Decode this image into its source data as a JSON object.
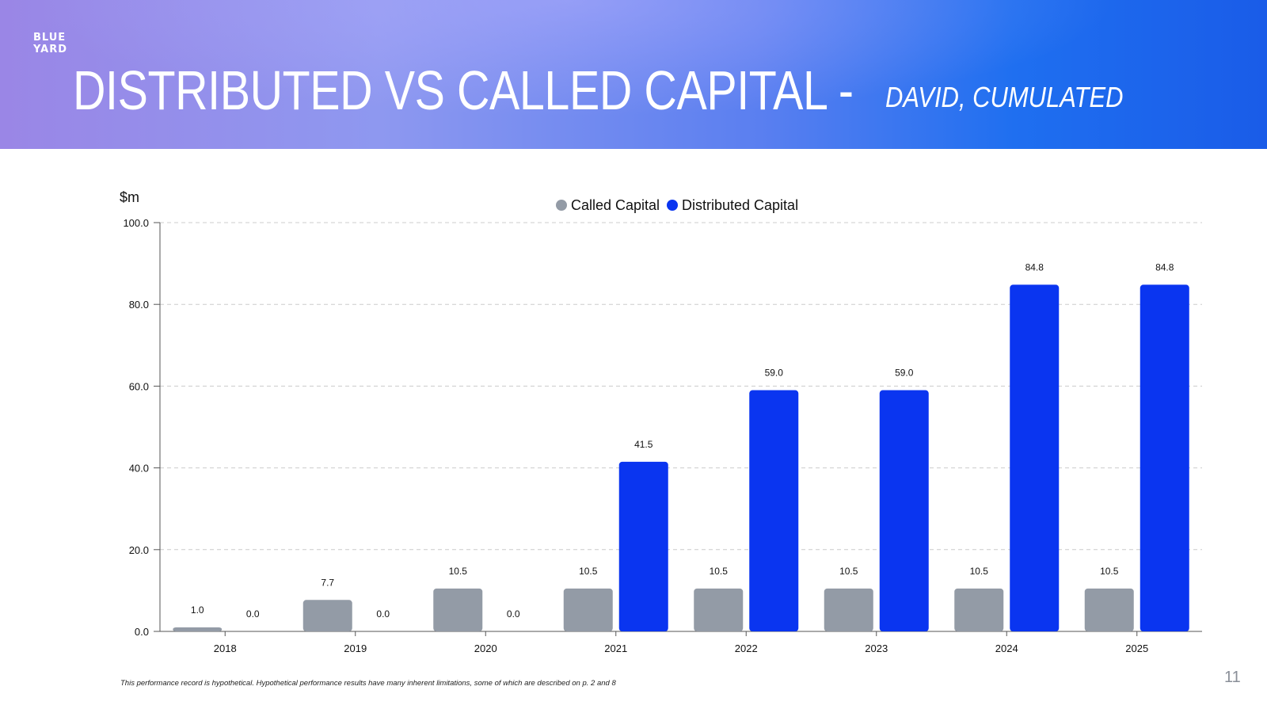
{
  "brand": {
    "logo_line1": "BLUE",
    "logo_line2": "YARD"
  },
  "slide": {
    "title": "DISTRIBUTED VS CALLED CAPITAL -",
    "subtitle": "DAVID, CUMULATED",
    "page_number": "11",
    "footnote": "This performance record is hypothetical. Hypothetical performance results have many inherent limitations, some of which are described on p. 2 and 8"
  },
  "colors": {
    "called": "#939ba6",
    "distributed": "#0a35f0",
    "grid": "#cccccc",
    "axis": "#555555"
  },
  "chart_data": {
    "type": "bar",
    "title": "",
    "ylabel": "$m",
    "xlabel": "",
    "ylim": [
      0,
      100
    ],
    "yticks": [
      "0.0",
      "20.0",
      "40.0",
      "60.0",
      "80.0",
      "100.0"
    ],
    "grid": true,
    "legend_position": "top-center",
    "categories": [
      "2018",
      "2019",
      "2020",
      "2021",
      "2022",
      "2023",
      "2024",
      "2025"
    ],
    "series": [
      {
        "name": "Called Capital",
        "values": [
          1.0,
          7.7,
          10.5,
          10.5,
          10.5,
          10.5,
          10.5,
          10.5
        ],
        "labels": [
          "1.0",
          "7.7",
          "10.5",
          "10.5",
          "10.5",
          "10.5",
          "10.5",
          "10.5"
        ]
      },
      {
        "name": "Distributed Capital",
        "values": [
          0.0,
          0.0,
          0.0,
          41.5,
          59.0,
          59.0,
          84.8,
          84.8
        ],
        "labels": [
          "0.0",
          "0.0",
          "0.0",
          "41.5",
          "59.0",
          "59.0",
          "84.8",
          "84.8"
        ]
      }
    ]
  }
}
